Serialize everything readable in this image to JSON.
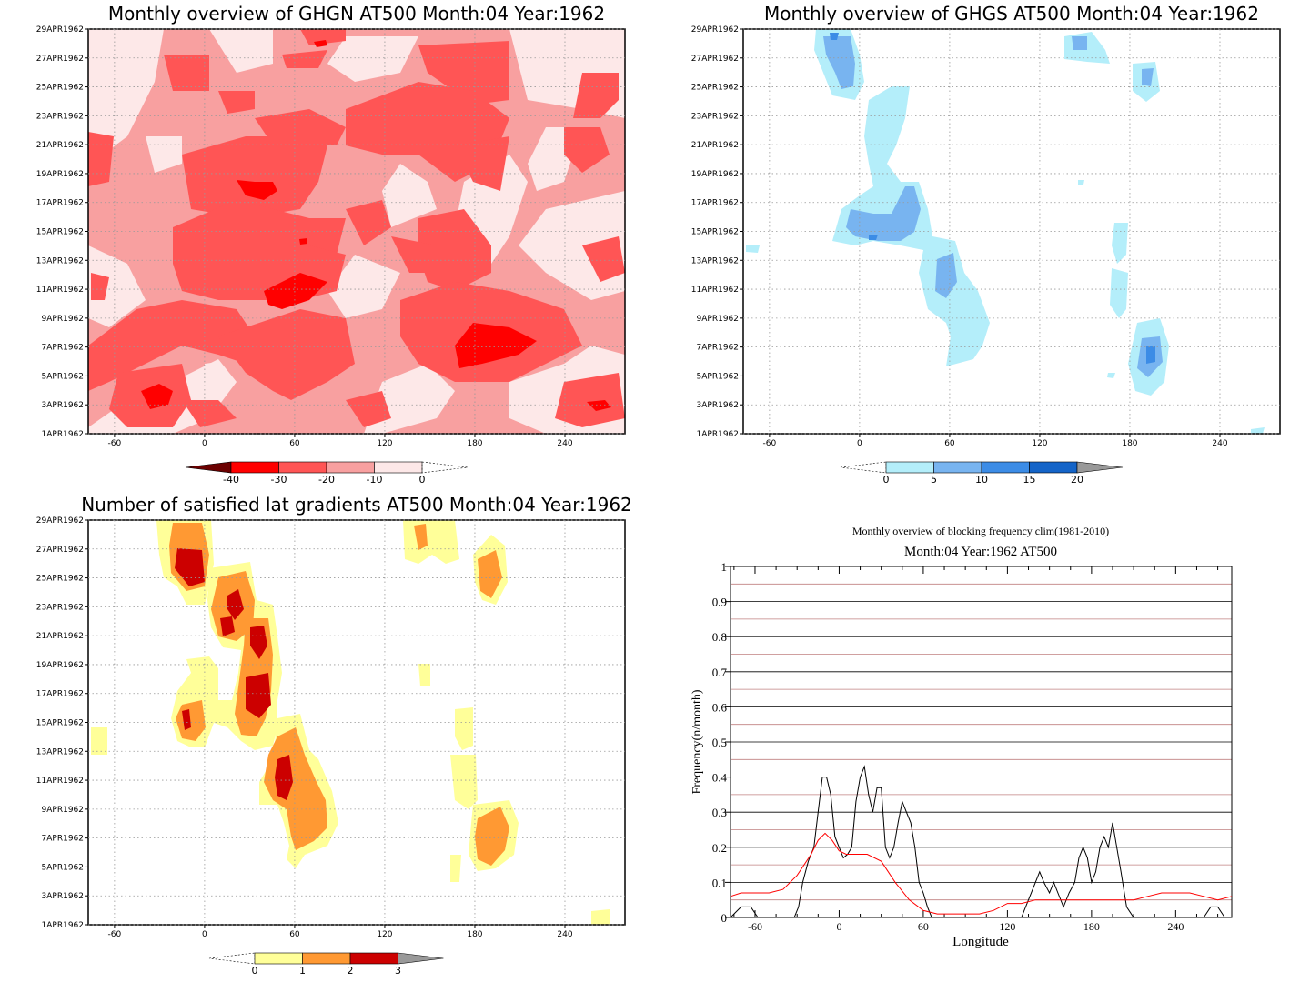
{
  "panels": {
    "ghgn": {
      "title": "Monthly overview of GHGN AT500 Month:04 Year:1962",
      "colorbar": {
        "labels": [
          "-40",
          "-30",
          "-20",
          "-10",
          "0"
        ],
        "colors": [
          "#6b0000",
          "#ff0000",
          "#ff5555",
          "#f8a0a0",
          "#fde8e8"
        ]
      }
    },
    "ghgs": {
      "title": "Monthly overview of GHGS AT500 Month:04 Year:1962",
      "colorbar": {
        "labels": [
          "0",
          "5",
          "10",
          "15",
          "20"
        ],
        "colors": [
          "#b4eefa",
          "#78b4f0",
          "#3c8ce6",
          "#1464c8",
          "#999999"
        ]
      }
    },
    "lat": {
      "title": "Number of satisfied lat gradients AT500 Month:04 Year:1962",
      "colorbar": {
        "labels": [
          "0",
          "1",
          "2",
          "3"
        ],
        "colors": [
          "#ffff99",
          "#ff9933",
          "#cc0000",
          "#999999"
        ]
      }
    },
    "freq": {
      "title": "Monthly overview of blocking frequency clim(1981-2010)",
      "subtitle": "Month:04 Year:1962  AT500",
      "xlabel": "Longitude",
      "ylabel": "Frequency(n/month)"
    }
  },
  "shared_axes": {
    "x_ticks": [
      "-60",
      "0",
      "60",
      "120",
      "180",
      "240"
    ],
    "y_ticks": [
      "1APR1962",
      "3APR1962",
      "5APR1962",
      "7APR1962",
      "9APR1962",
      "11APR1962",
      "13APR1962",
      "15APR1962",
      "17APR1962",
      "19APR1962",
      "21APR1962",
      "23APR1962",
      "25APR1962",
      "27APR1962",
      "29APR1962"
    ]
  },
  "chart_data": [
    {
      "type": "heatmap",
      "title": "Monthly overview of GHGN AT500 Month:04 Year:1962",
      "x_ticks": [
        -60,
        0,
        60,
        120,
        180,
        240
      ],
      "xlim": [
        -77.5,
        280
      ],
      "y_ticks": [
        "1APR1962",
        "3APR1962",
        "5APR1962",
        "7APR1962",
        "9APR1962",
        "11APR1962",
        "13APR1962",
        "15APR1962",
        "17APR1962",
        "19APR1962",
        "21APR1962",
        "23APR1962",
        "25APR1962",
        "27APR1962",
        "29APR1962"
      ],
      "levels": [
        -40,
        -30,
        -20,
        -10,
        0
      ],
      "note_fields": "filled contour field; predominantly -20 to 0 with patches of -30"
    },
    {
      "type": "heatmap",
      "title": "Monthly overview of GHGS AT500 Month:04 Year:1962",
      "x_ticks": [
        -60,
        0,
        60,
        120,
        180,
        240
      ],
      "xlim": [
        -77.5,
        280
      ],
      "levels": [
        0,
        5,
        10,
        15,
        20
      ]
    },
    {
      "type": "heatmap",
      "title": "Number of satisfied lat gradients AT500 Month:04 Year:1962",
      "x_ticks": [
        -60,
        0,
        60,
        120,
        180,
        240
      ],
      "xlim": [
        -77.5,
        280
      ],
      "levels": [
        0,
        1,
        2,
        3
      ]
    },
    {
      "type": "line",
      "title": "Monthly overview of blocking frequency clim(1981-2010)",
      "subtitle": "Month:04 Year:1962  AT500",
      "xlabel": "Longitude",
      "ylabel": "Frequency(n/month)",
      "xlim": [
        -77.5,
        280
      ],
      "ylim": [
        0,
        1
      ],
      "x_ticks": [
        -60,
        0,
        60,
        120,
        180,
        240
      ],
      "y_ticks": [
        0,
        0.1,
        0.2,
        0.3,
        0.4,
        0.5,
        0.6,
        0.7,
        0.8,
        0.9,
        1
      ],
      "series": [
        {
          "color": "#000000",
          "x": [
            -77.5,
            -70,
            -67,
            -63,
            -58,
            -50,
            -40,
            -32,
            -29,
            -26,
            -22,
            -18,
            -15,
            -12,
            -9,
            -6,
            -3,
            0,
            3,
            6,
            9,
            12,
            15,
            18,
            21,
            24,
            27,
            30,
            33,
            36,
            39,
            42,
            45,
            48,
            51,
            54,
            57,
            60,
            63,
            66,
            69,
            72,
            75,
            80,
            90,
            100,
            110,
            120,
            130,
            135,
            140,
            143,
            146,
            150,
            153,
            156,
            160,
            164,
            168,
            171,
            174,
            177,
            180,
            183,
            186,
            189,
            192,
            195,
            198,
            201,
            205,
            210,
            220,
            230,
            240,
            250,
            260,
            265,
            270,
            275,
            280
          ],
          "y": [
            0,
            0.03,
            0.03,
            0.03,
            0,
            0,
            0,
            0,
            0.03,
            0.1,
            0.16,
            0.2,
            0.3,
            0.4,
            0.4,
            0.35,
            0.23,
            0.2,
            0.17,
            0.18,
            0.2,
            0.33,
            0.4,
            0.43,
            0.35,
            0.3,
            0.37,
            0.37,
            0.2,
            0.17,
            0.2,
            0.27,
            0.33,
            0.3,
            0.27,
            0.2,
            0.1,
            0.07,
            0.03,
            0,
            0,
            0,
            0,
            0,
            0,
            0,
            0,
            0,
            0,
            0.05,
            0.1,
            0.13,
            0.1,
            0.07,
            0.1,
            0.07,
            0.03,
            0.07,
            0.1,
            0.17,
            0.2,
            0.17,
            0.1,
            0.13,
            0.2,
            0.23,
            0.2,
            0.27,
            0.2,
            0.13,
            0.03,
            0,
            0,
            0,
            0,
            0,
            0,
            0.03,
            0.03,
            0,
            0
          ]
        },
        {
          "color": "#ff0000",
          "x": [
            -77.5,
            -70,
            -60,
            -50,
            -40,
            -30,
            -20,
            -15,
            -10,
            -5,
            0,
            5,
            10,
            20,
            30,
            40,
            50,
            60,
            70,
            80,
            90,
            100,
            110,
            120,
            130,
            140,
            150,
            160,
            170,
            180,
            190,
            200,
            210,
            220,
            230,
            240,
            250,
            260,
            270,
            280
          ],
          "y": [
            0.06,
            0.07,
            0.07,
            0.07,
            0.08,
            0.12,
            0.18,
            0.22,
            0.24,
            0.22,
            0.19,
            0.18,
            0.18,
            0.18,
            0.16,
            0.1,
            0.05,
            0.02,
            0.01,
            0.01,
            0.01,
            0.01,
            0.02,
            0.04,
            0.04,
            0.05,
            0.05,
            0.05,
            0.05,
            0.05,
            0.05,
            0.05,
            0.05,
            0.06,
            0.07,
            0.07,
            0.07,
            0.06,
            0.05,
            0.06
          ]
        }
      ]
    }
  ]
}
